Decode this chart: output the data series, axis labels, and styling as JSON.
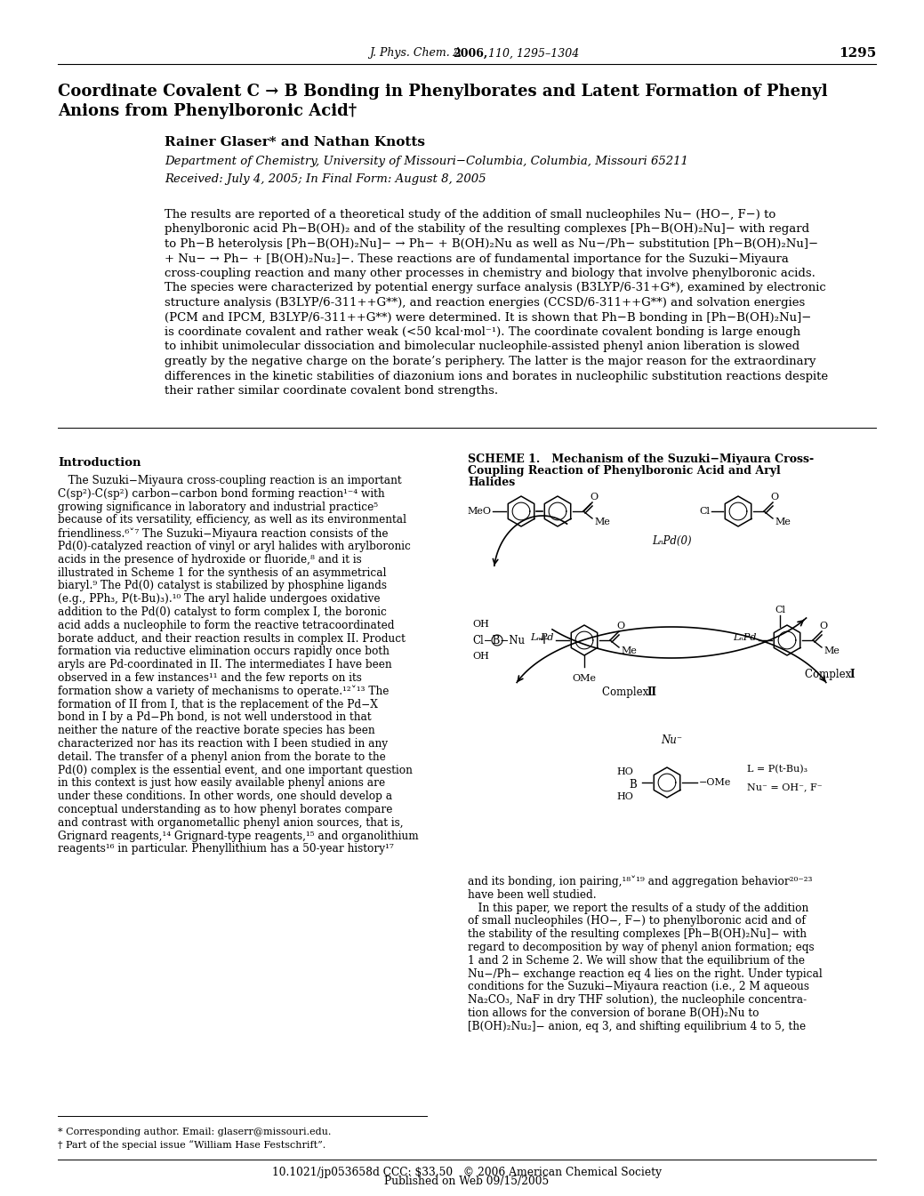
{
  "journal_header_italic": "J. Phys. Chem. A ",
  "journal_header_bold": "2006,",
  "journal_header_rest": " 110, 1295–1304",
  "page_number": "1295",
  "title_line1": "Coordinate Covalent C → B Bonding in Phenylborates and Latent Formation of Phenyl",
  "title_line2": "Anions from Phenylboronic Acid†",
  "authors": "Rainer Glaser* and Nathan Knotts",
  "affiliation": "Department of Chemistry, University of Missouri−Columbia, Columbia, Missouri 65211",
  "received": "Received: July 4, 2005; In Final Form: August 8, 2005",
  "abstract_lines": [
    "The results are reported of a theoretical study of the addition of small nucleophiles Nu− (HO−, F−) to",
    "phenylboronic acid Ph−B(OH)₂ and of the stability of the resulting complexes [Ph−B(OH)₂Nu]− with regard",
    "to Ph−B heterolysis [Ph−B(OH)₂Nu]− → Ph− + B(OH)₂Nu as well as Nu−/Ph− substitution [Ph−B(OH)₂Nu]−",
    "+ Nu− → Ph− + [B(OH)₂Nu₂]−. These reactions are of fundamental importance for the Suzuki−Miyaura",
    "cross-coupling reaction and many other processes in chemistry and biology that involve phenylboronic acids.",
    "The species were characterized by potential energy surface analysis (B3LYP/6-31+G*), examined by electronic",
    "structure analysis (B3LYP/6-311++G**), and reaction energies (CCSD/6-311++G**) and solvation energies",
    "(PCM and IPCM, B3LYP/6-311++G**) were determined. It is shown that Ph−B bonding in [Ph−B(OH)₂Nu]−",
    "is coordinate covalent and rather weak (<50 kcal·mol⁻¹). The coordinate covalent bonding is large enough",
    "to inhibit unimolecular dissociation and bimolecular nucleophile-assisted phenyl anion liberation is slowed",
    "greatly by the negative charge on the borate’s periphery. The latter is the major reason for the extraordinary",
    "differences in the kinetic stabilities of diazonium ions and borates in nucleophilic substitution reactions despite",
    "their rather similar coordinate covalent bond strengths."
  ],
  "intro_heading": "Introduction",
  "intro_lines": [
    "   The Suzuki−Miyaura cross-coupling reaction is an important",
    "C(sp²)-C(sp²) carbon−carbon bond forming reaction¹⁻⁴ with",
    "growing significance in laboratory and industrial practice⁵",
    "because of its versatility, efficiency, as well as its environmental",
    "friendliness.⁶ˇ⁷ The Suzuki−Miyaura reaction consists of the",
    "Pd(0)-catalyzed reaction of vinyl or aryl halides with arylboronic",
    "acids in the presence of hydroxide or fluoride,⁸ and it is",
    "illustrated in Scheme 1 for the synthesis of an asymmetrical",
    "biaryl.⁹ The Pd(0) catalyst is stabilized by phosphine ligands",
    "(e.g., PPh₃, P(t-Bu)₃).¹⁰ The aryl halide undergoes oxidative",
    "addition to the Pd(0) catalyst to form complex I, the boronic",
    "acid adds a nucleophile to form the reactive tetracoordinated",
    "borate adduct, and their reaction results in complex II. Product",
    "formation via reductive elimination occurs rapidly once both",
    "aryls are Pd-coordinated in II. The intermediates I have been",
    "observed in a few instances¹¹ and the few reports on its",
    "formation show a variety of mechanisms to operate.¹²ˇ¹³ The",
    "formation of II from I, that is the replacement of the Pd−X",
    "bond in I by a Pd−Ph bond, is not well understood in that",
    "neither the nature of the reactive borate species has been",
    "characterized nor has its reaction with I been studied in any",
    "detail. The transfer of a phenyl anion from the borate to the",
    "Pd(0) complex is the essential event, and one important question",
    "in this context is just how easily available phenyl anions are",
    "under these conditions. In other words, one should develop a",
    "conceptual understanding as to how phenyl borates compare",
    "and contrast with organometallic phenyl anion sources, that is,",
    "Grignard reagents,¹⁴ Grignard-type reagents,¹⁵ and organolithium",
    "reagents¹⁶ in particular. Phenyllithium has a 50-year history¹⁷"
  ],
  "scheme_head1": "SCHEME 1.   Mechanism of the Suzuki−Miyaura Cross-",
  "scheme_head2": "Coupling Reaction of Phenylboronic Acid and Aryl",
  "scheme_head3": "Halides",
  "right_col_lines": [
    "and its bonding, ion pairing,¹⁸ˇ¹⁹ and aggregation behavior²⁰⁻²³",
    "have been well studied.",
    "   In this paper, we report the results of a study of the addition",
    "of small nucleophiles (HO−, F−) to phenylboronic acid and of",
    "the stability of the resulting complexes [Ph−B(OH)₂Nu]− with",
    "regard to decomposition by way of phenyl anion formation; eqs",
    "1 and 2 in Scheme 2. We will show that the equilibrium of the",
    "Nu−/Ph− exchange reaction eq 4 lies on the right. Under typical",
    "conditions for the Suzuki−Miyaura reaction (i.e., 2 M aqueous",
    "Na₂CO₃, NaF in dry THF solution), the nucleophile concentra-",
    "tion allows for the conversion of borane B(OH)₂Nu to",
    "[B(OH)₂Nu₂]− anion, eq 3, and shifting equilibrium 4 to 5, the"
  ],
  "footnote_star": "* Corresponding author. Email: glaserr@missouri.edu.",
  "footnote_dagger": "† Part of the special issue “William Hase Festschrift”.",
  "doi_line": "10.1021/jp053658d CCC: $33.50   © 2006 American Chemical Society",
  "pub_line": "Published on Web 09/15/2005",
  "bg_color": "#ffffff",
  "text_color": "#000000"
}
